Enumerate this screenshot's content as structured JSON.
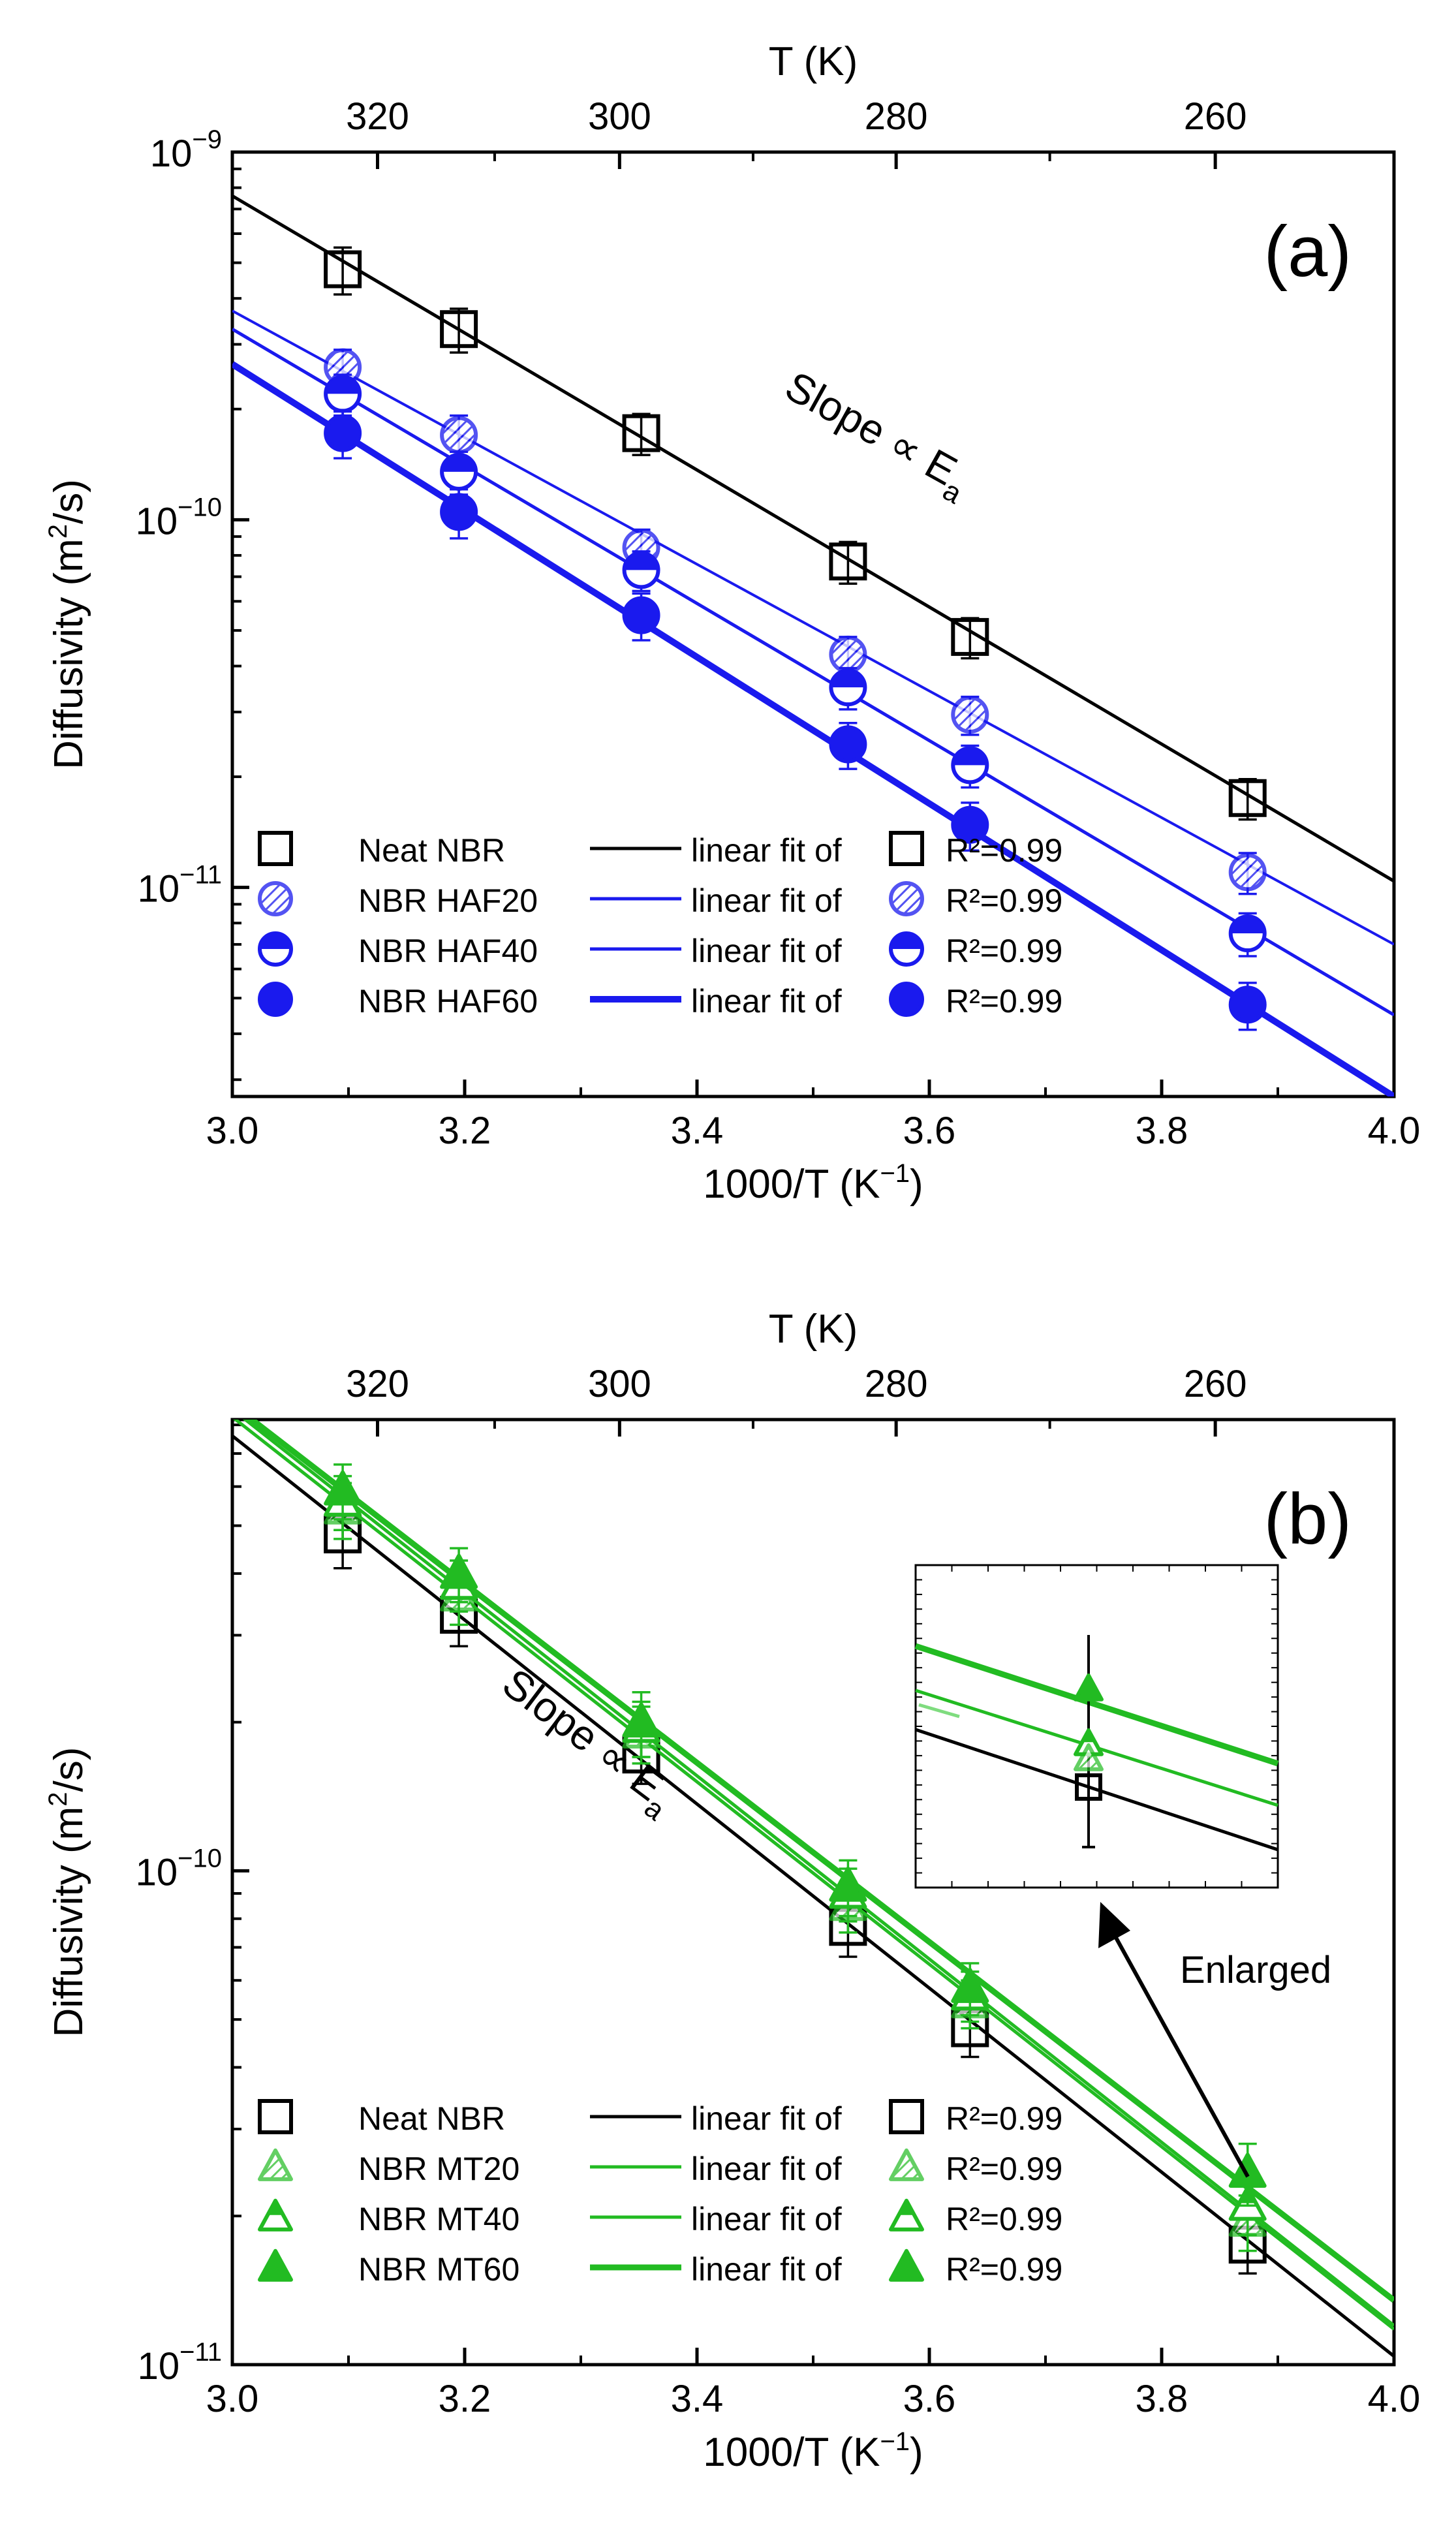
{
  "chart_data": [
    {
      "id": "a",
      "type": "scatter",
      "panel_label": "(a)",
      "xlabel": "1000/T (K⁻¹)",
      "xlabel_parts": [
        "1000/T (K",
        "−1",
        ")"
      ],
      "ylabel_parts": [
        "Diffusivity (m",
        "2",
        "/s)"
      ],
      "top_xlabel": "T (K)",
      "xlim": [
        3.0,
        4.0
      ],
      "ylim": [
        2.7e-12,
        1e-09
      ],
      "yscale": "log",
      "x_ticks": [
        "3.0",
        "3.2",
        "3.4",
        "3.6",
        "3.8",
        "4.0"
      ],
      "x_tick_values": [
        3.0,
        3.2,
        3.4,
        3.6,
        3.8,
        4.0
      ],
      "top_ticks": [
        "320",
        "300",
        "280",
        "260"
      ],
      "top_tick_values": [
        320,
        300,
        280,
        260
      ],
      "y_ticks": [
        {
          "base": "10",
          "exp": "−9",
          "value": 1e-09
        },
        {
          "base": "10",
          "exp": "−10",
          "value": 1e-10
        },
        {
          "base": "10",
          "exp": "−11",
          "value": 1e-11
        }
      ],
      "annotation": {
        "text": "Slope ∝ E",
        "sub": "a",
        "x": 3.55,
        "y": 1.6e-10
      },
      "series": [
        {
          "name": "Neat NBR",
          "marker": "square-open",
          "color": "#000000",
          "x": [
            3.095,
            3.195,
            3.352,
            3.53,
            3.635,
            3.874
          ],
          "y": [
            4.8e-10,
            3.3e-10,
            1.72e-10,
            7.7e-11,
            4.8e-11,
            1.75e-11
          ],
          "err": [
            7e-11,
            4.5e-11,
            2.2e-11,
            1e-11,
            6e-12,
            2.2e-12
          ],
          "fit": {
            "y0": 7.6e-10,
            "y1": 1.04e-11,
            "width": 5
          },
          "fit_label": "linear fit of",
          "r2": "R²=0.99"
        },
        {
          "name": "NBR HAF20",
          "marker": "circle-hatch",
          "color": "#1a1aee",
          "x": [
            3.095,
            3.195,
            3.352,
            3.53,
            3.635,
            3.874
          ],
          "y": [
            2.6e-10,
            1.7e-10,
            8.4e-11,
            4.3e-11,
            2.95e-11,
            1.1e-11
          ],
          "err": [
            3e-11,
            2.2e-11,
            1e-11,
            5e-12,
            3.5e-12,
            1.4e-12
          ],
          "fit": {
            "y0": 3.7e-10,
            "y1": 7e-12,
            "width": 4
          },
          "fit_label": "linear fit of",
          "r2": "R²=0.99"
        },
        {
          "name": "NBR HAF40",
          "marker": "circle-half",
          "color": "#1a1aee",
          "x": [
            3.095,
            3.195,
            3.352,
            3.53,
            3.635,
            3.874
          ],
          "y": [
            2.2e-10,
            1.35e-10,
            7.3e-11,
            3.5e-11,
            2.15e-11,
            7.5e-12
          ],
          "err": [
            2.8e-11,
            1.8e-11,
            9e-12,
            4.5e-12,
            2.8e-12,
            1e-12
          ],
          "fit": {
            "y0": 3.3e-10,
            "y1": 4.5e-12,
            "width": 5
          },
          "fit_label": "linear fit of",
          "r2": "R²=0.99"
        },
        {
          "name": "NBR HAF60",
          "marker": "circle-filled",
          "color": "#1a1aee",
          "x": [
            3.095,
            3.195,
            3.352,
            3.53,
            3.635,
            3.874
          ],
          "y": [
            1.72e-10,
            1.05e-10,
            5.5e-11,
            2.45e-11,
            1.48e-11,
            4.8e-12
          ],
          "err": [
            2.5e-11,
            1.6e-11,
            8e-12,
            3.5e-12,
            2.2e-12,
            7e-13
          ],
          "fit": {
            "y0": 2.65e-10,
            "y1": 2.7e-12,
            "width": 10
          },
          "fit_label": "linear fit of",
          "r2": "R²=0.99"
        }
      ]
    },
    {
      "id": "b",
      "type": "scatter",
      "panel_label": "(b)",
      "xlabel": "1000/T (K⁻¹)",
      "xlabel_parts": [
        "1000/T (K",
        "−1",
        ")"
      ],
      "ylabel_parts": [
        "Diffusivity (m",
        "2",
        "/s)"
      ],
      "top_xlabel": "T (K)",
      "xlim": [
        3.0,
        4.0
      ],
      "ylim": [
        1e-11,
        8.2e-10
      ],
      "yscale": "log",
      "x_ticks": [
        "3.0",
        "3.2",
        "3.4",
        "3.6",
        "3.8",
        "4.0"
      ],
      "x_tick_values": [
        3.0,
        3.2,
        3.4,
        3.6,
        3.8,
        4.0
      ],
      "top_ticks": [
        "320",
        "300",
        "280",
        "260"
      ],
      "top_tick_values": [
        320,
        300,
        280,
        260
      ],
      "y_ticks": [
        {
          "base": "10",
          "exp": "−10",
          "value": 1e-10
        },
        {
          "base": "10",
          "exp": "−11",
          "value": 1e-11
        }
      ],
      "annotation": {
        "text": "Slope ∝ E",
        "sub": "a",
        "x": 3.3,
        "y": 1.75e-10
      },
      "enlarged_label": "Enlarged",
      "series": [
        {
          "name": "Neat NBR",
          "marker": "square-open",
          "color": "#000000",
          "x": [
            3.095,
            3.195,
            3.352,
            3.53,
            3.635,
            3.874
          ],
          "y": [
            4.8e-10,
            3.3e-10,
            1.72e-10,
            7.7e-11,
            4.8e-11,
            1.75e-11
          ],
          "err": [
            7e-11,
            4.5e-11,
            2.2e-11,
            1e-11,
            6e-12,
            2.2e-12
          ],
          "fit": {
            "y0": 7.6e-10,
            "y1": 1.04e-11,
            "width": 5
          },
          "fit_label": "linear fit of",
          "r2": "R²=0.99"
        },
        {
          "name": "NBR MT20",
          "marker": "triangle-hatch",
          "color": "#22bb22",
          "x": [
            3.095,
            3.195,
            3.352,
            3.53,
            3.635,
            3.874
          ],
          "y": [
            5.4e-10,
            3.6e-10,
            1.9e-10,
            8.5e-11,
            5.4e-11,
            1.95e-11
          ],
          "err": [
            7e-11,
            4.5e-11,
            2.5e-11,
            1e-11,
            6e-12,
            2.5e-12
          ],
          "fit": {
            "y0": 8.3e-10,
            "y1": 1.18e-11,
            "width": 5
          },
          "fit_label": "linear fit of",
          "r2": "R²=0.99"
        },
        {
          "name": "NBR MT40",
          "marker": "triangle-half",
          "color": "#22bb22",
          "x": [
            3.095,
            3.195,
            3.352,
            3.53,
            3.635,
            3.874
          ],
          "y": [
            5.6e-10,
            3.8e-10,
            1.95e-10,
            9e-11,
            5.6e-11,
            2.1e-11
          ],
          "err": [
            7e-11,
            4.5e-11,
            2.5e-11,
            1.1e-11,
            6.5e-12,
            2.7e-12
          ],
          "fit": {
            "y0": 8.6e-10,
            "y1": 1.2e-11,
            "width": 5
          },
          "fit_label": "linear fit of",
          "r2": "R²=0.99"
        },
        {
          "name": "NBR MT60",
          "marker": "triangle-filled",
          "color": "#22bb22",
          "x": [
            3.095,
            3.195,
            3.352,
            3.53,
            3.635,
            3.874
          ],
          "y": [
            5.9e-10,
            4e-10,
            2e-10,
            9.3e-11,
            5.8e-11,
            2.45e-11
          ],
          "err": [
            7.5e-11,
            5e-11,
            3e-11,
            1.2e-11,
            7e-12,
            3.5e-12
          ],
          "fit": {
            "y0": 8.8e-10,
            "y1": 1.35e-11,
            "width": 9
          },
          "fit_label": "linear fit of",
          "r2": "R²=0.99"
        }
      ]
    }
  ]
}
